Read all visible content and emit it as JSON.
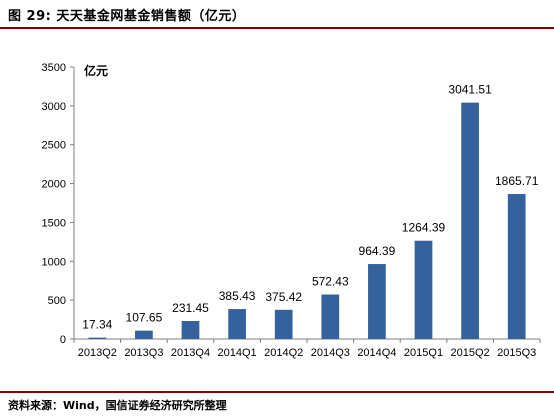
{
  "figure": {
    "title": "图 29:  天天基金网基金销售额（亿元）",
    "source": "资料来源：Wind，国信证券经济研究所整理"
  },
  "colors": {
    "bar": "#35629c",
    "rule": "#8b0000",
    "axis": "#7f7f7f"
  },
  "chart_data": {
    "type": "bar",
    "title": "天天基金网基金销售额（亿元）",
    "unit_label": "亿元",
    "xlabel": "",
    "ylabel": "亿元",
    "categories": [
      "2013Q2",
      "2013Q3",
      "2013Q4",
      "2014Q1",
      "2014Q2",
      "2014Q3",
      "2014Q4",
      "2015Q1",
      "2015Q2",
      "2015Q3"
    ],
    "series": [
      {
        "values": [
          17.34,
          107.65,
          231.45,
          385.43,
          375.42,
          572.43,
          964.39,
          1264.39,
          3041.51,
          1865.71
        ]
      }
    ],
    "data_labels": [
      "17.34",
      "107.65",
      "231.45",
      "385.43",
      "375.42",
      "572.43",
      "964.39",
      "1264.39",
      "3041.51",
      "1865.71"
    ],
    "ylim": [
      0,
      3500
    ],
    "yticks": [
      0,
      500,
      1000,
      1500,
      2000,
      2500,
      3000,
      3500
    ],
    "grid": false,
    "legend": "none"
  }
}
